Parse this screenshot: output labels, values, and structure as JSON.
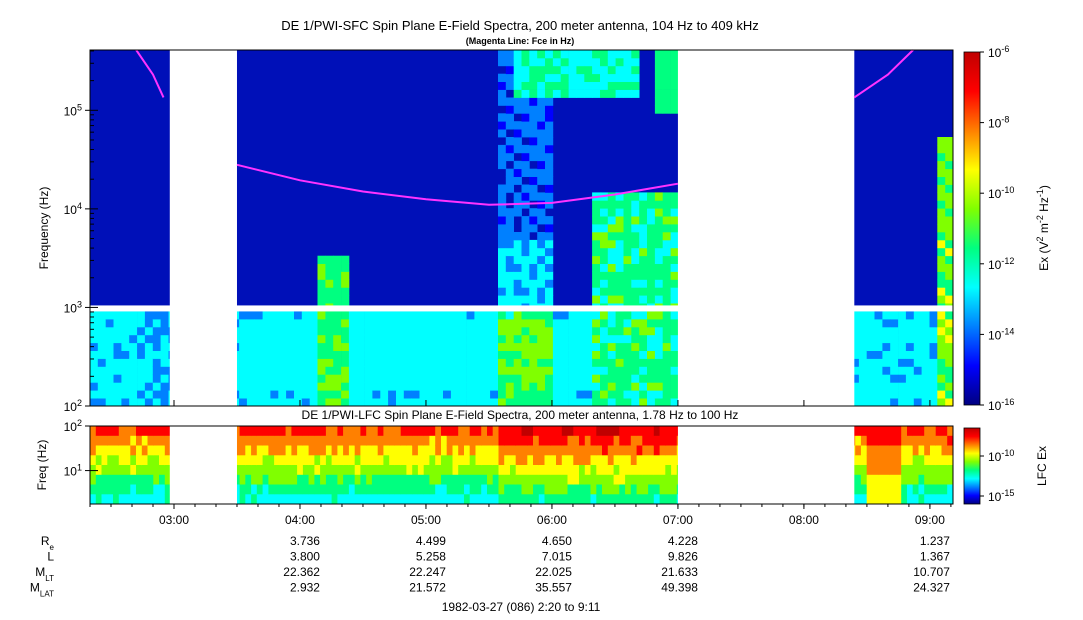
{
  "title": "DE 1/PWI-SFC  Spin Plane E-Field Spectra, 200 meter antenna, 104 Hz to 409 kHz",
  "subtitle": "(Magenta Line: Fce in Hz)",
  "lfc_title": "DE 1/PWI-LFC  Spin Plane E-Field Spectra, 200 meter antenna, 1.78 Hz to 100 Hz",
  "footer": "1982-03-27 (086) 2:20 to 9:11",
  "colors": {
    "fce_line": "#ff33ff",
    "colormap": [
      "#000080",
      "#0000ff",
      "#0080ff",
      "#00ffff",
      "#00ff80",
      "#80ff00",
      "#ffff00",
      "#ff8000",
      "#ff0000",
      "#c00000"
    ]
  },
  "chart_data": [
    {
      "type": "heatmap",
      "title": "DE 1/PWI-SFC  Spin Plane E-Field Spectra, 200 meter antenna, 104 Hz to 409 kHz",
      "xlabel": "",
      "ylabel": "Frequency (Hz)",
      "yscale": "log",
      "ylim_hz": [
        100,
        409000
      ],
      "yticks": [
        "10^2",
        "10^3",
        "10^4",
        "10^5"
      ],
      "x_range": [
        "02:20",
        "09:11"
      ],
      "data_gaps": [
        [
          "02:58",
          "03:30"
        ],
        [
          "07:00",
          "08:24"
        ]
      ],
      "frequency_gap_hz": 1000,
      "colorbar": {
        "label": "Ex (V^2 m^-2 Hz^-1)",
        "scale": "log",
        "range": [
          "10^-16",
          "10^-6"
        ],
        "ticks": [
          "10^-6",
          "10^-8",
          "10^-10",
          "10^-12",
          "10^-14",
          "10^-16"
        ]
      },
      "fce_line": [
        [
          "02:42",
          409000
        ],
        [
          "02:50",
          230000
        ],
        [
          "02:55",
          135000
        ],
        [
          "03:30",
          28000
        ],
        [
          "04:00",
          19500
        ],
        [
          "04:30",
          15000
        ],
        [
          "05:00",
          12500
        ],
        [
          "05:30",
          11000
        ],
        [
          "06:00",
          11500
        ],
        [
          "06:30",
          14000
        ],
        [
          "07:00",
          18000
        ],
        [
          "08:24",
          135000
        ],
        [
          "08:40",
          230000
        ],
        [
          "08:52",
          409000
        ]
      ]
    },
    {
      "type": "heatmap",
      "title": "DE 1/PWI-LFC  Spin Plane E-Field Spectra, 200 meter antenna, 1.78 Hz to 100 Hz",
      "ylabel": "Freq (Hz)",
      "yscale": "log",
      "ylim_hz": [
        1.78,
        100
      ],
      "yticks": [
        "10^2",
        "10^1"
      ],
      "x_range": [
        "02:20",
        "09:11"
      ],
      "data_gaps": [
        [
          "02:58",
          "03:30"
        ],
        [
          "07:00",
          "08:24"
        ]
      ],
      "colorbar": {
        "label": "LFC Ex",
        "scale": "log",
        "ticks": [
          "10^-10",
          "10^-15"
        ]
      },
      "xticks": [
        "03:00",
        "04:00",
        "05:00",
        "06:00",
        "07:00",
        "08:00",
        "09:00"
      ]
    },
    {
      "type": "table",
      "rows": [
        {
          "label": "R",
          "sub": "e",
          "values": [
            "3.736",
            "4.499",
            "4.650",
            "4.228",
            "1.237"
          ]
        },
        {
          "label": "L",
          "sub": "",
          "values": [
            "3.800",
            "5.258",
            "7.015",
            "9.826",
            "1.367"
          ]
        },
        {
          "label": "M",
          "sub": "LT",
          "values": [
            "22.362",
            "22.247",
            "22.025",
            "21.633",
            "10.707"
          ]
        },
        {
          "label": "M",
          "sub": "LAT",
          "values": [
            "2.932",
            "21.572",
            "35.557",
            "49.398",
            "24.327"
          ]
        }
      ],
      "columns": [
        "04:00",
        "05:00",
        "06:00",
        "07:00",
        "09:00"
      ]
    }
  ]
}
